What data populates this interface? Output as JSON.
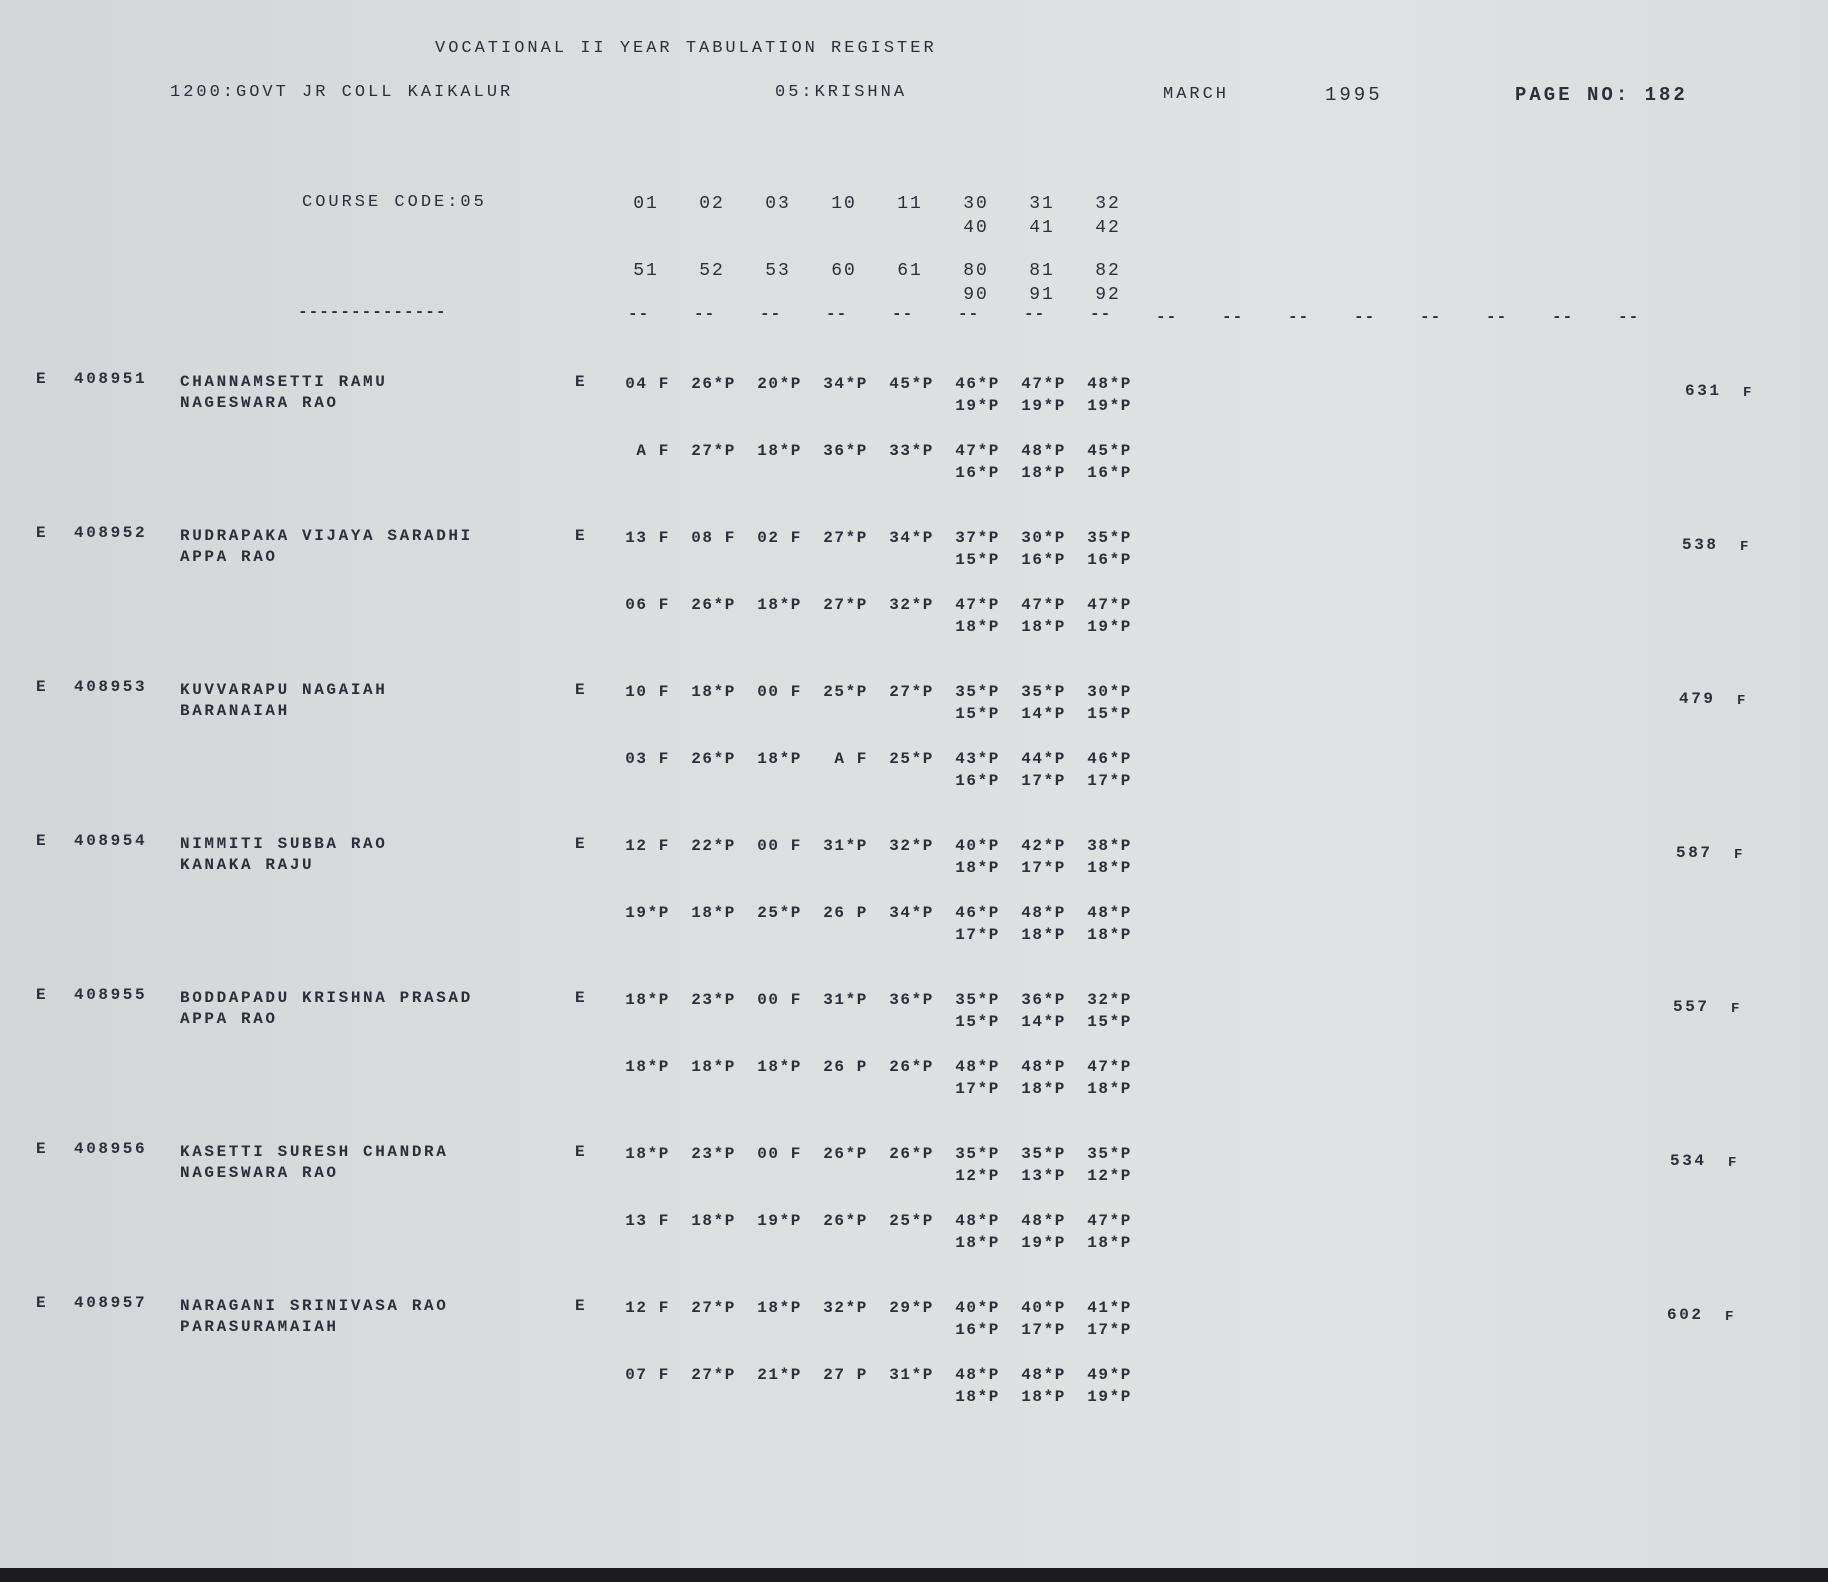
{
  "header": {
    "title": "VOCATIONAL II YEAR TABULATION REGISTER",
    "college": "1200:GOVT JR COLL KAIKALUR",
    "district": "05:KRISHNA",
    "month": "MARCH",
    "year": "1995",
    "page": "PAGE NO: 182"
  },
  "course": {
    "label": "COURSE CODE:05",
    "codes_row1": [
      "01",
      "02",
      "03",
      "10",
      "11",
      "30",
      "31",
      "32"
    ],
    "codes_row2": [
      "40",
      "41",
      "42"
    ],
    "codes_row3": [
      "51",
      "52",
      "53",
      "60",
      "61",
      "80",
      "81",
      "82"
    ],
    "codes_row4": [
      "90",
      "91",
      "92"
    ],
    "label_rule": "--------------",
    "column_rule": "--",
    "column_rule_count": 16
  },
  "students": [
    {
      "flag": "E",
      "roll": "408951",
      "name": "CHANNAMSETTI RAMU",
      "father": "NAGESWARA RAO",
      "prefix": "E",
      "marks1": [
        "04 F",
        "26*P",
        "20*P",
        "34*P",
        "45*P",
        "46*P",
        "47*P",
        "48*P"
      ],
      "marks1b": [
        "19*P",
        "19*P",
        "19*P"
      ],
      "marks2": [
        "A F",
        "27*P",
        "18*P",
        "36*P",
        "33*P",
        "47*P",
        "48*P",
        "45*P"
      ],
      "marks2b": [
        "16*P",
        "18*P",
        "16*P"
      ],
      "total": "631",
      "result": "F"
    },
    {
      "flag": "E",
      "roll": "408952",
      "name": "RUDRAPAKA VIJAYA SARADHI",
      "father": "APPA RAO",
      "prefix": "E",
      "marks1": [
        "13 F",
        "08 F",
        "02 F",
        "27*P",
        "34*P",
        "37*P",
        "30*P",
        "35*P"
      ],
      "marks1b": [
        "15*P",
        "16*P",
        "16*P"
      ],
      "marks2": [
        "06 F",
        "26*P",
        "18*P",
        "27*P",
        "32*P",
        "47*P",
        "47*P",
        "47*P"
      ],
      "marks2b": [
        "18*P",
        "18*P",
        "19*P"
      ],
      "total": "538",
      "result": "F"
    },
    {
      "flag": "E",
      "roll": "408953",
      "name": "KUVVARAPU NAGAIAH",
      "father": "BARANAIAH",
      "prefix": "E",
      "marks1": [
        "10 F",
        "18*P",
        "00 F",
        "25*P",
        "27*P",
        "35*P",
        "35*P",
        "30*P"
      ],
      "marks1b": [
        "15*P",
        "14*P",
        "15*P"
      ],
      "marks2": [
        "03 F",
        "26*P",
        "18*P",
        "A F",
        "25*P",
        "43*P",
        "44*P",
        "46*P"
      ],
      "marks2b": [
        "16*P",
        "17*P",
        "17*P"
      ],
      "total": "479",
      "result": "F"
    },
    {
      "flag": "E",
      "roll": "408954",
      "name": "NIMMITI SUBBA RAO",
      "father": "KANAKA RAJU",
      "prefix": "E",
      "marks1": [
        "12 F",
        "22*P",
        "00 F",
        "31*P",
        "32*P",
        "40*P",
        "42*P",
        "38*P"
      ],
      "marks1b": [
        "18*P",
        "17*P",
        "18*P"
      ],
      "marks2": [
        "19*P",
        "18*P",
        "25*P",
        "26 P",
        "34*P",
        "46*P",
        "48*P",
        "48*P"
      ],
      "marks2b": [
        "17*P",
        "18*P",
        "18*P"
      ],
      "total": "587",
      "result": "F"
    },
    {
      "flag": "E",
      "roll": "408955",
      "name": "BODDAPADU KRISHNA PRASAD",
      "father": "APPA RAO",
      "prefix": "E",
      "marks1": [
        "18*P",
        "23*P",
        "00 F",
        "31*P",
        "36*P",
        "35*P",
        "36*P",
        "32*P"
      ],
      "marks1b": [
        "15*P",
        "14*P",
        "15*P"
      ],
      "marks2": [
        "18*P",
        "18*P",
        "18*P",
        "26 P",
        "26*P",
        "48*P",
        "48*P",
        "47*P"
      ],
      "marks2b": [
        "17*P",
        "18*P",
        "18*P"
      ],
      "total": "557",
      "result": "F"
    },
    {
      "flag": "E",
      "roll": "408956",
      "name": "KASETTI SURESH CHANDRA",
      "father": "NAGESWARA RAO",
      "prefix": "E",
      "marks1": [
        "18*P",
        "23*P",
        "00 F",
        "26*P",
        "26*P",
        "35*P",
        "35*P",
        "35*P"
      ],
      "marks1b": [
        "12*P",
        "13*P",
        "12*P"
      ],
      "marks2": [
        "13 F",
        "18*P",
        "19*P",
        "26*P",
        "25*P",
        "48*P",
        "48*P",
        "47*P"
      ],
      "marks2b": [
        "18*P",
        "19*P",
        "18*P"
      ],
      "total": "534",
      "result": "F"
    },
    {
      "flag": "E",
      "roll": "408957",
      "name": "NARAGANI SRINIVASA RAO",
      "father": "PARASURAMAIAH",
      "prefix": "E",
      "marks1": [
        "12 F",
        "27*P",
        "18*P",
        "32*P",
        "29*P",
        "40*P",
        "40*P",
        "41*P"
      ],
      "marks1b": [
        "16*P",
        "17*P",
        "17*P"
      ],
      "marks2": [
        "07 F",
        "27*P",
        "21*P",
        "27 P",
        "31*P",
        "48*P",
        "48*P",
        "49*P"
      ],
      "marks2b": [
        "18*P",
        "18*P",
        "19*P"
      ],
      "total": "602",
      "result": "F"
    }
  ]
}
